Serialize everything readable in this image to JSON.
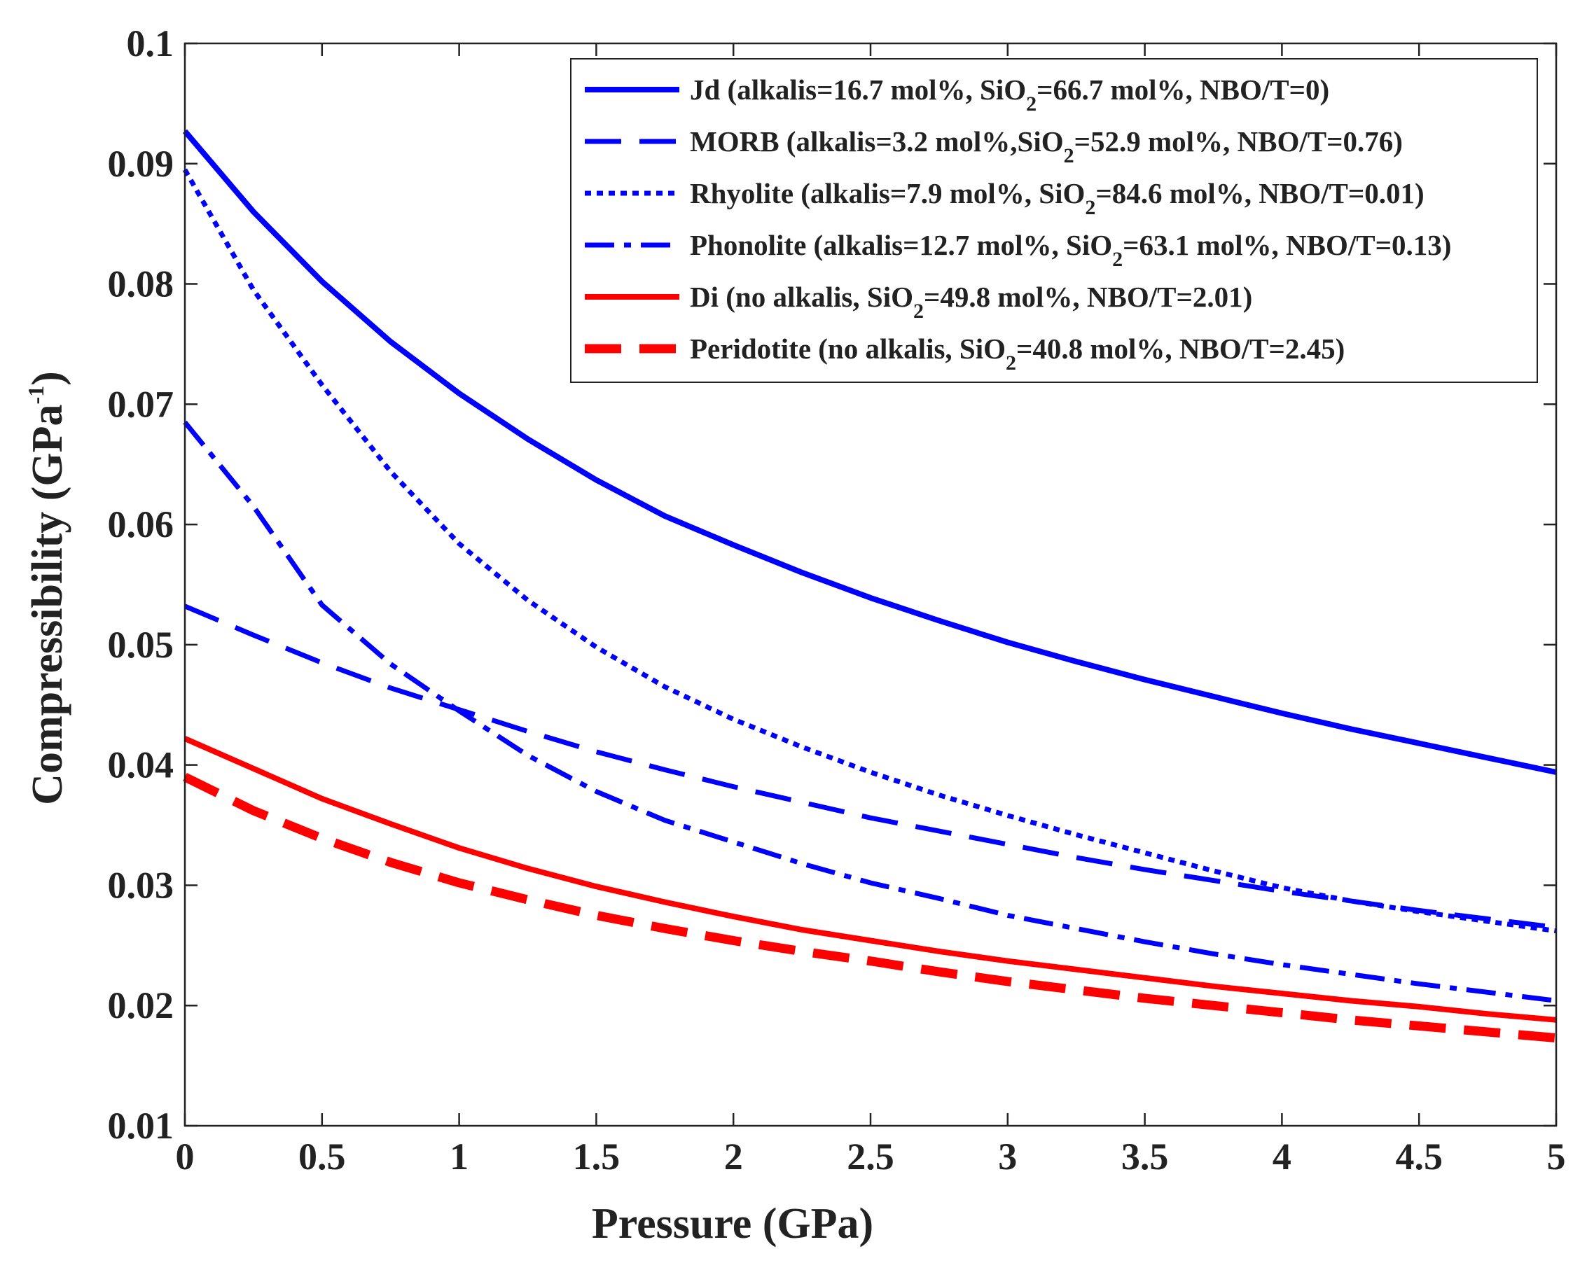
{
  "chart_data": {
    "type": "line",
    "xlabel": "Pressure (GPa)",
    "ylabel": {
      "main": "Compressibility (GPa",
      "sup": "-1",
      "close": ")"
    },
    "xlim": [
      0,
      5
    ],
    "ylim": [
      0.01,
      0.1
    ],
    "xticks": [
      0,
      0.5,
      1,
      1.5,
      2,
      2.5,
      3,
      3.5,
      4,
      4.5,
      5
    ],
    "xtick_labels": [
      "0",
      "0.5",
      "1",
      "1.5",
      "2",
      "2.5",
      "3",
      "3.5",
      "4",
      "4.5",
      "5"
    ],
    "yticks": [
      0.01,
      0.02,
      0.03,
      0.04,
      0.05,
      0.06,
      0.07,
      0.08,
      0.09,
      0.1
    ],
    "ytick_labels": [
      "0.01",
      "0.02",
      "0.03",
      "0.04",
      "0.05",
      "0.06",
      "0.07",
      "0.08",
      "0.09",
      "0.1"
    ],
    "grid": false,
    "legend_position": "top-right",
    "x": [
      0,
      0.25,
      0.5,
      0.75,
      1,
      1.25,
      1.5,
      1.75,
      2,
      2.25,
      2.5,
      2.75,
      3,
      3.25,
      3.5,
      3.75,
      4,
      4.25,
      4.5,
      4.75,
      5
    ],
    "series": [
      {
        "name": "Jd",
        "legend": {
          "pre": "Jd (alkalis=16.7 mol%, SiO",
          "sub": "2",
          "post": "=66.7 mol%, NBO/T=0)"
        },
        "color": "#0000ff",
        "style": "solid",
        "values": [
          0.0927,
          0.086,
          0.0802,
          0.0752,
          0.0709,
          0.0671,
          0.0637,
          0.0607,
          0.0583,
          0.056,
          0.0539,
          0.052,
          0.0502,
          0.0486,
          0.0471,
          0.0457,
          0.0443,
          0.043,
          0.0418,
          0.0406,
          0.0394
        ]
      },
      {
        "name": "MORB",
        "legend": {
          "pre": "MORB (alkalis=3.2 mol%,SiO",
          "sub": "2",
          "post": "=52.9 mol%, NBO/T=0.76)"
        },
        "color": "#0000ff",
        "style": "dashed",
        "values": [
          0.0532,
          0.0508,
          0.0485,
          0.0464,
          0.0446,
          0.0428,
          0.0411,
          0.0396,
          0.0382,
          0.0369,
          0.0356,
          0.0345,
          0.0334,
          0.0323,
          0.0313,
          0.0304,
          0.0295,
          0.0287,
          0.0279,
          0.0272,
          0.0265
        ]
      },
      {
        "name": "Rhyolite",
        "legend": {
          "pre": "Rhyolite (alkalis=7.9 mol%, SiO",
          "sub": "2",
          "post": "=84.6 mol%, NBO/T=0.01)"
        },
        "color": "#0000ff",
        "style": "dotted",
        "values": [
          0.0895,
          0.0795,
          0.0716,
          0.0644,
          0.0584,
          0.0537,
          0.0498,
          0.0465,
          0.0438,
          0.0415,
          0.0394,
          0.0375,
          0.0358,
          0.0342,
          0.0327,
          0.0312,
          0.0298,
          0.0287,
          0.0278,
          0.027,
          0.0262
        ]
      },
      {
        "name": "Phonolite",
        "legend": {
          "pre": "Phonolite (alkalis=12.7 mol%, SiO",
          "sub": "2",
          "post": "=63.1 mol%, NBO/T=0.13)"
        },
        "color": "#0000ff",
        "style": "dashdot",
        "values": [
          0.0685,
          0.0615,
          0.0533,
          0.0484,
          0.0445,
          0.0408,
          0.0378,
          0.0354,
          0.0336,
          0.0318,
          0.0302,
          0.0289,
          0.0275,
          0.0264,
          0.0253,
          0.0243,
          0.0234,
          0.0226,
          0.0218,
          0.0211,
          0.0204
        ]
      },
      {
        "name": "Di",
        "legend": {
          "pre": "Di (no alkalis, SiO",
          "sub": "2",
          "post": "=49.8 mol%, NBO/T=2.01)"
        },
        "color": "#ff0000",
        "style": "solid",
        "values": [
          0.0422,
          0.0397,
          0.0372,
          0.0351,
          0.0331,
          0.0314,
          0.0299,
          0.0286,
          0.0274,
          0.0263,
          0.0254,
          0.0245,
          0.0237,
          0.023,
          0.0223,
          0.0216,
          0.021,
          0.0204,
          0.0199,
          0.0193,
          0.0188
        ]
      },
      {
        "name": "Peridotite",
        "legend": {
          "pre": "Peridotite (no alkalis, SiO",
          "sub": "2",
          "post": "=40.8 mol%, NBO/T=2.45)"
        },
        "color": "#ff0000",
        "style": "dashed-thick",
        "values": [
          0.039,
          0.0362,
          0.0339,
          0.0319,
          0.0302,
          0.0288,
          0.0275,
          0.0264,
          0.0254,
          0.0245,
          0.0237,
          0.0228,
          0.022,
          0.0213,
          0.0206,
          0.02,
          0.0194,
          0.0188,
          0.0183,
          0.0178,
          0.0173
        ]
      }
    ]
  }
}
